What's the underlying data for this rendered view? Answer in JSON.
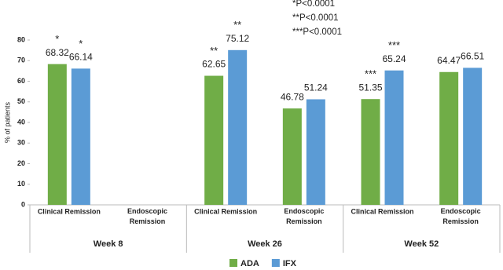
{
  "chart_data": {
    "type": "bar",
    "categories": [
      "Clinical Remission",
      "Endoscopic Remission",
      "Clinical Remission",
      "Endoscopic Remission",
      "Clinical Remission",
      "Endoscopic Remission"
    ],
    "group_labels": [
      "Week 8",
      "Week 26",
      "Week 52"
    ],
    "ylabel": "% of patients",
    "ylim": [
      0,
      80
    ],
    "yticks": [
      0,
      10,
      20,
      30,
      40,
      50,
      60,
      70,
      80
    ],
    "series": [
      {
        "name": "ADA",
        "color": "#70ad47",
        "values": [
          68.32,
          null,
          62.65,
          46.78,
          51.35,
          64.47
        ],
        "annotations": [
          "*",
          null,
          "**",
          null,
          "***",
          null
        ]
      },
      {
        "name": "IFX",
        "color": "#5b9bd5",
        "values": [
          66.14,
          null,
          75.12,
          51.24,
          65.24,
          66.51
        ],
        "annotations": [
          "*",
          null,
          "**",
          null,
          "***",
          null
        ]
      }
    ],
    "notes": [
      "*P<0.0001",
      "**P<0.0001",
      "***P<0.0001"
    ],
    "legend": "bottom"
  }
}
